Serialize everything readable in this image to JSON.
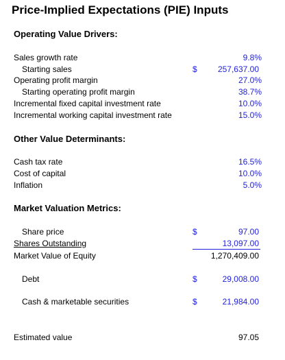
{
  "title": "Price-Implied Expectations (PIE) Inputs",
  "operating": {
    "heading": "Operating Value Drivers:",
    "sales_growth": {
      "label": "Sales growth rate",
      "value": "9.8%"
    },
    "starting_sales": {
      "label": "Starting sales",
      "currency": "$",
      "value": "257,637.00"
    },
    "op_margin": {
      "label": "Operating profit margin",
      "value": "27.0%"
    },
    "start_op_margin": {
      "label": "Starting operating profit margin",
      "value": "38.7%"
    },
    "fixed_capital": {
      "label": "Incremental fixed capital investment rate",
      "value": "10.0%"
    },
    "working_capital": {
      "label": "Incremental working capital investment rate",
      "value": "15.0%"
    }
  },
  "other": {
    "heading": "Other Value Determinants:",
    "cash_tax": {
      "label": "Cash tax rate",
      "value": "16.5%"
    },
    "cost_capital": {
      "label": "Cost of capital",
      "value": "10.0%"
    },
    "inflation": {
      "label": "Inflation",
      "value": "5.0%"
    }
  },
  "market": {
    "heading": "Market Valuation Metrics:",
    "share_price": {
      "label": "Share price",
      "currency": "$",
      "value": "97.00"
    },
    "shares_outstanding": {
      "label": "Shares Outstanding",
      "value": "13,097.00"
    },
    "market_value_equity": {
      "label": "Market Value of Equity",
      "value": "1,270,409.00"
    },
    "debt": {
      "label": "Debt",
      "currency": "$",
      "value": "29,008.00"
    },
    "cash_securities": {
      "label": "Cash & marketable securities",
      "currency": "$",
      "value": "21,984.00"
    }
  },
  "estimated": {
    "label": "Estimated value",
    "value": "97.05"
  },
  "colors": {
    "input_blue": "#1f1fdc",
    "text": "#000000"
  }
}
